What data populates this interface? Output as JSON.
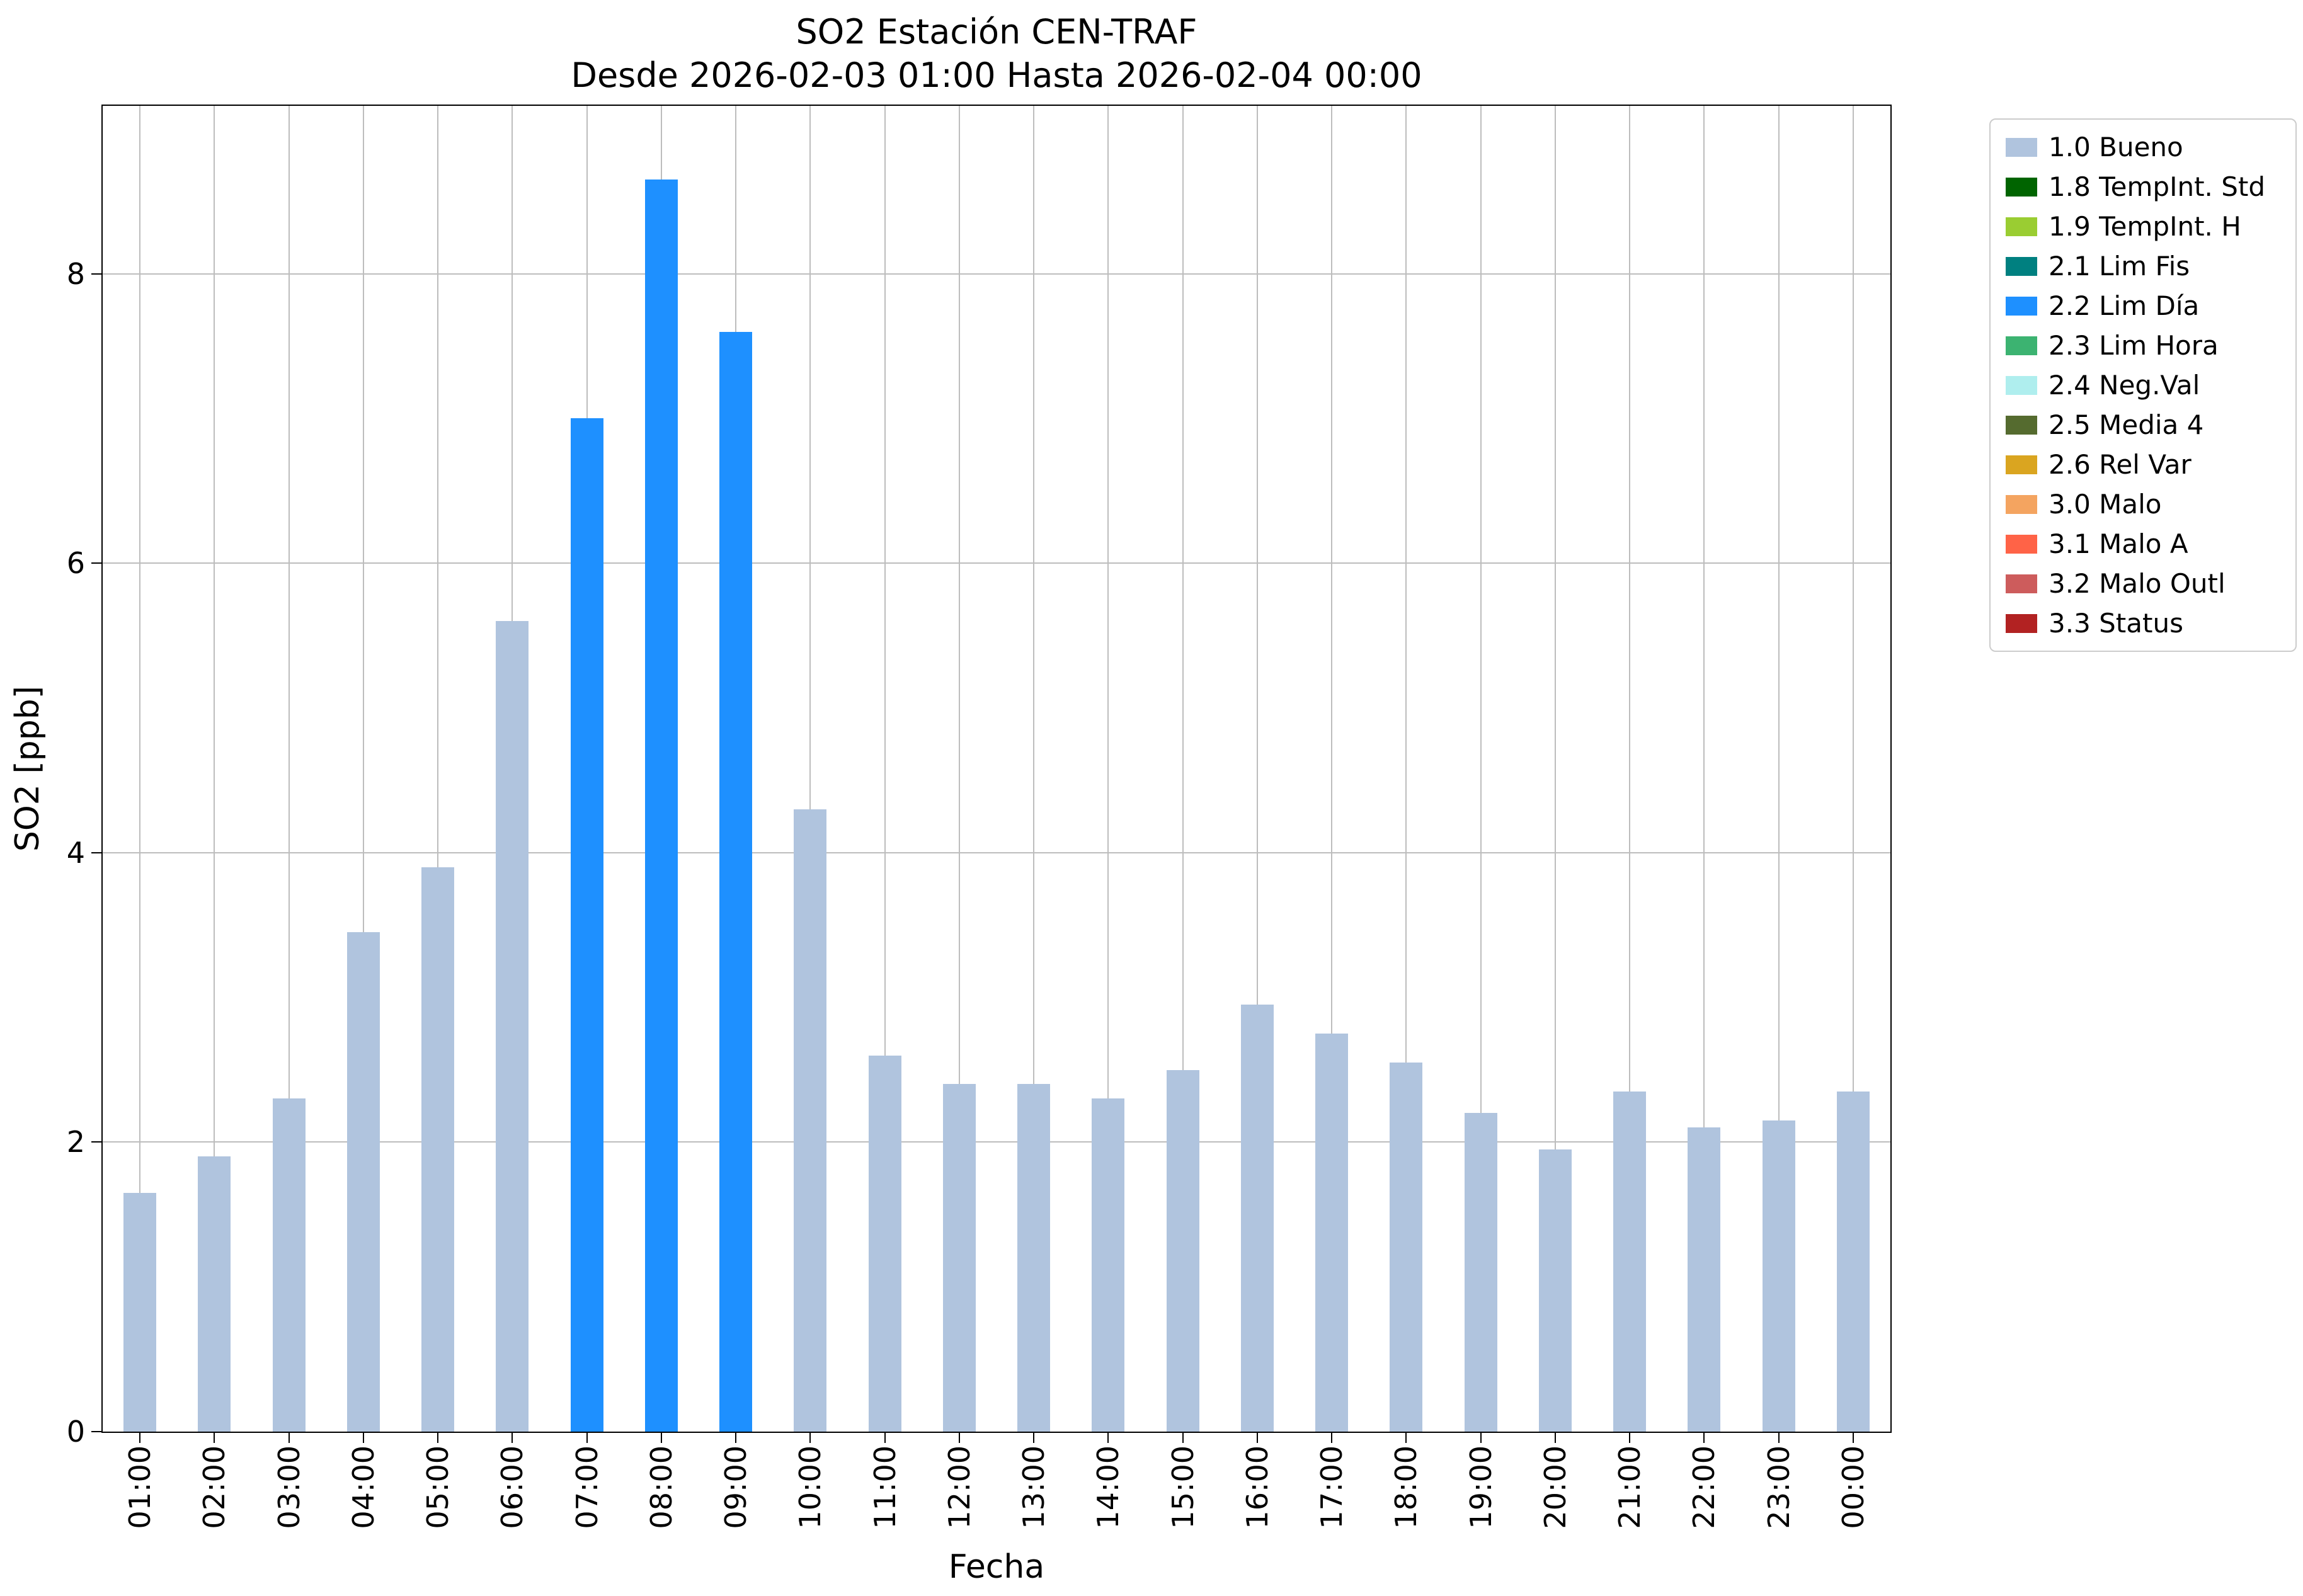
{
  "chart_data": {
    "type": "bar",
    "title": "SO2 Estación CEN-TRAF",
    "subtitle": "Desde 2026-02-03 01:00 Hasta 2026-02-04 00:00",
    "xlabel": "Fecha",
    "ylabel": "SO2 [ppb]",
    "ylim": [
      0,
      9.16
    ],
    "yticks": [
      0,
      2,
      4,
      6,
      8
    ],
    "grid": true,
    "legend_position": "outside-upper-right",
    "categories": [
      "01:00",
      "02:00",
      "03:00",
      "04:00",
      "05:00",
      "06:00",
      "07:00",
      "08:00",
      "09:00",
      "10:00",
      "11:00",
      "12:00",
      "13:00",
      "14:00",
      "15:00",
      "16:00",
      "17:00",
      "18:00",
      "19:00",
      "20:00",
      "21:00",
      "22:00",
      "23:00",
      "00:00"
    ],
    "values": [
      1.65,
      1.9,
      2.3,
      3.45,
      3.9,
      5.6,
      7.0,
      8.65,
      7.6,
      4.3,
      2.6,
      2.4,
      2.4,
      2.3,
      2.5,
      2.95,
      2.75,
      2.55,
      2.2,
      1.95,
      2.35,
      2.1,
      2.15,
      2.35
    ],
    "bar_status": [
      "1.0 Bueno",
      "1.0 Bueno",
      "1.0 Bueno",
      "1.0 Bueno",
      "1.0 Bueno",
      "1.0 Bueno",
      "2.2 Lim Día",
      "2.2 Lim Día",
      "2.2 Lim Día",
      "1.0 Bueno",
      "1.0 Bueno",
      "1.0 Bueno",
      "1.0 Bueno",
      "1.0 Bueno",
      "1.0 Bueno",
      "1.0 Bueno",
      "1.0 Bueno",
      "1.0 Bueno",
      "1.0 Bueno",
      "1.0 Bueno",
      "1.0 Bueno",
      "1.0 Bueno",
      "1.0 Bueno",
      "1.0 Bueno"
    ],
    "legend": [
      {
        "label": "1.0 Bueno",
        "color": "#b0c4de"
      },
      {
        "label": "1.8 TempInt. Std",
        "color": "#006400"
      },
      {
        "label": "1.9 TempInt. H",
        "color": "#9acd32"
      },
      {
        "label": "2.1 Lim Fis",
        "color": "#008080"
      },
      {
        "label": "2.2 Lim Día",
        "color": "#1e90ff"
      },
      {
        "label": "2.3 Lim Hora",
        "color": "#3cb371"
      },
      {
        "label": "2.4 Neg.Val",
        "color": "#afeeee"
      },
      {
        "label": "2.5 Media 4",
        "color": "#556b2f"
      },
      {
        "label": "2.6 Rel Var",
        "color": "#daa520"
      },
      {
        "label": "3.0 Malo",
        "color": "#f4a460"
      },
      {
        "label": "3.1 Malo A",
        "color": "#ff6347"
      },
      {
        "label": "3.2 Malo Outl",
        "color": "#cd5c5c"
      },
      {
        "label": "3.3 Status",
        "color": "#b22222"
      }
    ]
  }
}
